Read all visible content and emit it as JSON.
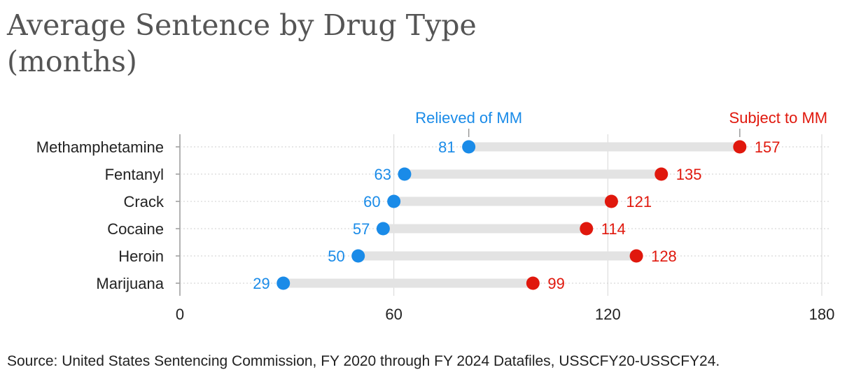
{
  "title_line1": "Average Sentence by Drug Type",
  "title_line2": "(months)",
  "source": "Source: United States Sentencing Commission, FY 2020 through FY 2024 Datafiles, USSCFY20-USSCFY24.",
  "chart_data": {
    "type": "dumbbell",
    "title": "Average Sentence by Drug Type (months)",
    "categories": [
      "Methamphetamine",
      "Fentanyl",
      "Crack",
      "Cocaine",
      "Heroin",
      "Marijuana"
    ],
    "series": [
      {
        "name": "Relieved of MM",
        "values": [
          81,
          63,
          60,
          57,
          50,
          29
        ],
        "color": "#1a8be8"
      },
      {
        "name": "Subject to MM",
        "values": [
          157,
          135,
          121,
          114,
          128,
          99
        ],
        "color": "#e0180d"
      }
    ],
    "xlim": [
      0,
      180
    ],
    "xticks": [
      0,
      60,
      120,
      180
    ],
    "xlabel": "",
    "ylabel": ""
  },
  "colors": {
    "connector": "#e3e3e3",
    "grid": "#d6d6d6",
    "text": "#222222"
  }
}
